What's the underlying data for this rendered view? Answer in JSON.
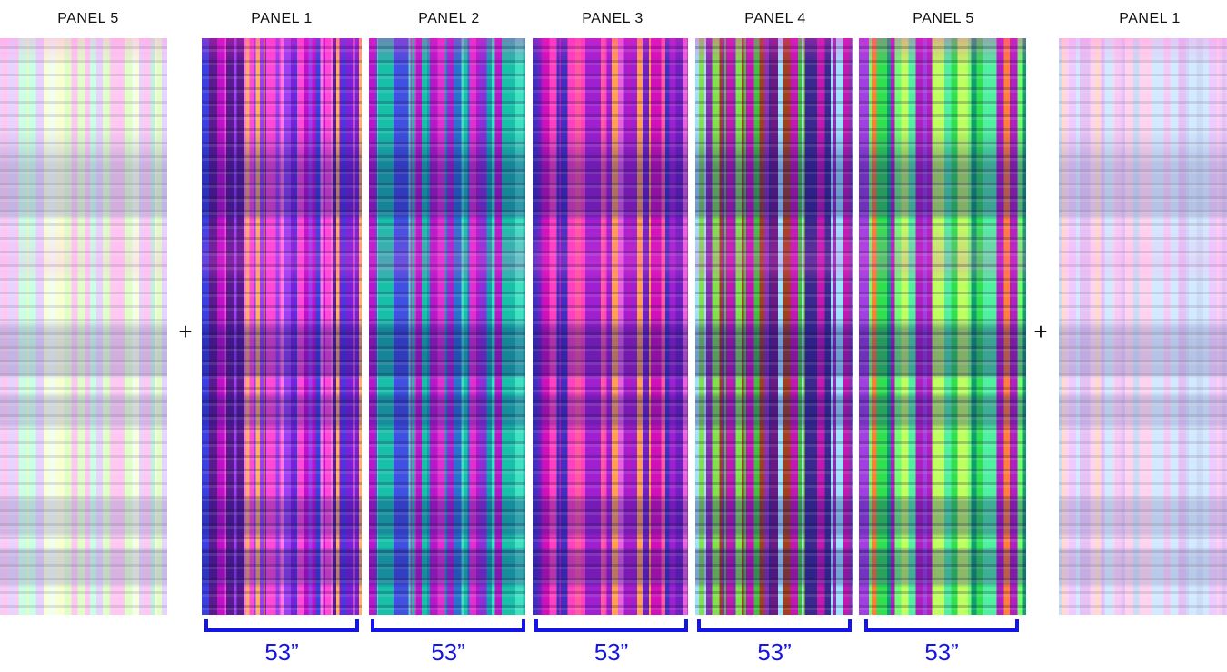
{
  "panels": [
    {
      "label": "PANEL 5",
      "role": "repeat-left",
      "palette": [
        "#9dffd0",
        "#c8ff9a",
        "#f6ffb0",
        "#8ee8c8",
        "#d6b0ff",
        "#ff9be8",
        "#b6f0a0",
        "#e8ffe0"
      ]
    },
    {
      "label": "PANEL 1",
      "role": "main",
      "palette": [
        "#c010c8",
        "#7a20d8",
        "#3a40e0",
        "#ff4ad8",
        "#ffb060",
        "#5a1a90",
        "#9a40f0",
        "#ff7ae0"
      ]
    },
    {
      "label": "PANEL 2",
      "role": "main",
      "palette": [
        "#b818c8",
        "#10a0b0",
        "#18c0a8",
        "#4050e0",
        "#8a30d8",
        "#40e0c0",
        "#e030d0",
        "#2a70d0"
      ]
    },
    {
      "label": "PANEL 3",
      "role": "main",
      "palette": [
        "#d010b8",
        "#a020d0",
        "#ff5aa0",
        "#ffa050",
        "#7020c0",
        "#e860e0",
        "#ff40c0",
        "#4030c0"
      ]
    },
    {
      "label": "PANEL 4",
      "role": "main",
      "palette": [
        "#c018b0",
        "#6a1a80",
        "#40c040",
        "#80e050",
        "#a04020",
        "#a0e0ff",
        "#8a30b0",
        "#3a2a90"
      ]
    },
    {
      "label": "PANEL 5",
      "role": "main",
      "palette": [
        "#30e050",
        "#70ff70",
        "#c0ff60",
        "#a040e0",
        "#10a070",
        "#ff8030",
        "#b020c0",
        "#50f0a0"
      ]
    },
    {
      "label": "PANEL 1",
      "role": "repeat-right",
      "palette": [
        "#f0a0f0",
        "#d090f0",
        "#a0c0f0",
        "#ffb0e0",
        "#e0a0ff",
        "#b0d8ff",
        "#ffc0a0",
        "#f0b0ff"
      ]
    }
  ],
  "plus_sign": "+",
  "dimensions": [
    {
      "label": "53”"
    },
    {
      "label": "53”"
    },
    {
      "label": "53”"
    },
    {
      "label": "53”"
    },
    {
      "label": "53”"
    }
  ],
  "colors": {
    "dimension": "#1414e6",
    "text": "#111111",
    "background": "#ffffff"
  }
}
